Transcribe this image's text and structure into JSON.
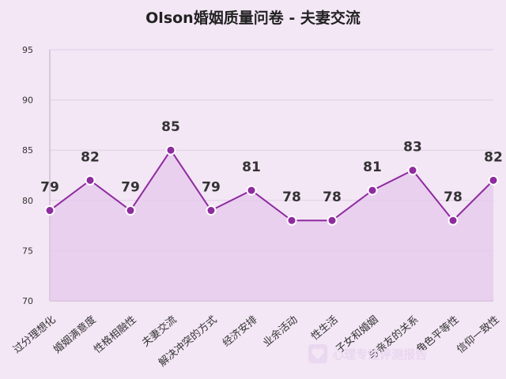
{
  "chart_data": {
    "type": "line",
    "title": "Olson婚姻质量问卷 - 夫妻交流",
    "categories": [
      "过分理想化",
      "婚姻满意度",
      "性格相融性",
      "夫妻交流",
      "解决冲突的方式",
      "经济安排",
      "业余活动",
      "性生活",
      "子女和婚姻",
      "与亲友的关系",
      "角色平等性",
      "信仰一致性"
    ],
    "values": [
      79,
      82,
      79,
      85,
      79,
      81,
      78,
      78,
      81,
      83,
      78,
      82
    ],
    "ylim": [
      70,
      95
    ],
    "yticks": [
      70,
      75,
      80,
      85,
      90,
      95
    ],
    "xlabel": "",
    "ylabel": "",
    "grid": true,
    "area_fill": true,
    "colors": {
      "line": "#8e2b9f",
      "area": "#e6c8ec",
      "background": "#f3e6f5"
    }
  },
  "watermark": {
    "text": "心理专注评测报告",
    "icon": "heart-icon"
  }
}
